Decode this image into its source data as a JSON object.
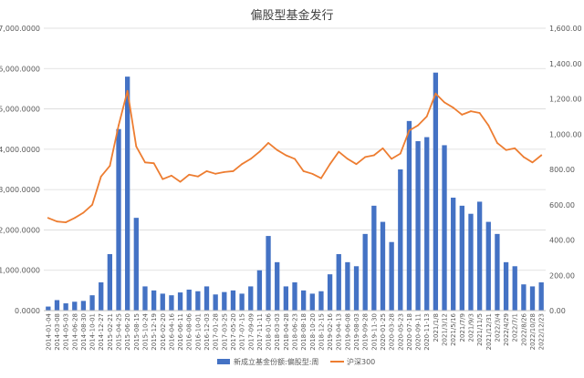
{
  "chart_data": {
    "type": "bar+line",
    "title": "偏股型基金发行",
    "legend": [
      {
        "label": "新成立基金份额:偏股型:周",
        "color": "#4472C4",
        "kind": "bar"
      },
      {
        "label": "沪深300",
        "color": "#ED7D31",
        "kind": "line"
      }
    ],
    "legend_position": "bottom-center",
    "grid": true,
    "y_left": {
      "ticks": [
        "0.0000",
        "1,000.0000",
        "2,000.0000",
        "3,000.0000",
        "4,000.0000",
        "5,000.0000",
        "6,000.0000",
        "7,000.0000"
      ],
      "range": [
        0,
        7000
      ]
    },
    "y_right": {
      "ticks": [
        "0.00",
        "200.00",
        "400.00",
        "600.00",
        "800.00",
        "1,000.00",
        "1,200.00",
        "1,400.00",
        "1,600.00"
      ],
      "range": [
        0,
        1600
      ]
    },
    "x_tick_labels": [
      "2014-01-04",
      "2014-03-08",
      "2014-05-03",
      "2014-06-28",
      "2014-08-30",
      "2014-10-01",
      "2014-12-27",
      "2015-02-21",
      "2015-04-25",
      "2015-06-20",
      "2015-08-15",
      "2015-10-24",
      "2015-12-19",
      "2016-02-20",
      "2016-04-16",
      "2016-06-11",
      "2016-08-06",
      "2016-10-01",
      "2016-12-03",
      "2017-01-28",
      "2017-03-25",
      "2017-05-20",
      "2017-07-15",
      "2017-09-09",
      "2017-11-11",
      "2018-01-06",
      "2018-03-03",
      "2018-04-28",
      "2018-06-23",
      "2018-08-18",
      "2018-10-20",
      "2018-12-15",
      "2019-02-16",
      "2019-04-13",
      "2019-06-08",
      "2019-08-03",
      "2019-09-28",
      "2019-11-30",
      "2020-01-25",
      "2020-03-28",
      "2020-05-23",
      "2020-07-18",
      "2020-09-11",
      "2020-11-13",
      "2021/1/8",
      "2021/3/12",
      "2021/5/16",
      "2021/7/9",
      "2021/9/3",
      "2021/11/5",
      "2021/12/31",
      "2022/3/4",
      "2022/4/29",
      "2022/7/1",
      "2022/8/26",
      "2022/10/28",
      "2022/12/23"
    ],
    "hs300": [
      {
        "x": 0,
        "y": 525
      },
      {
        "x": 1,
        "y": 505
      },
      {
        "x": 2,
        "y": 500
      },
      {
        "x": 3,
        "y": 525
      },
      {
        "x": 4,
        "y": 555
      },
      {
        "x": 5,
        "y": 600
      },
      {
        "x": 6,
        "y": 760
      },
      {
        "x": 7,
        "y": 820
      },
      {
        "x": 8,
        "y": 1050
      },
      {
        "x": 9,
        "y": 1245
      },
      {
        "x": 10,
        "y": 930
      },
      {
        "x": 11,
        "y": 840
      },
      {
        "x": 12,
        "y": 835
      },
      {
        "x": 13,
        "y": 745
      },
      {
        "x": 14,
        "y": 765
      },
      {
        "x": 15,
        "y": 730
      },
      {
        "x": 16,
        "y": 770
      },
      {
        "x": 17,
        "y": 760
      },
      {
        "x": 18,
        "y": 790
      },
      {
        "x": 19,
        "y": 775
      },
      {
        "x": 20,
        "y": 785
      },
      {
        "x": 21,
        "y": 790
      },
      {
        "x": 22,
        "y": 830
      },
      {
        "x": 23,
        "y": 860
      },
      {
        "x": 24,
        "y": 900
      },
      {
        "x": 25,
        "y": 950
      },
      {
        "x": 26,
        "y": 910
      },
      {
        "x": 27,
        "y": 880
      },
      {
        "x": 28,
        "y": 860
      },
      {
        "x": 29,
        "y": 790
      },
      {
        "x": 30,
        "y": 775
      },
      {
        "x": 31,
        "y": 750
      },
      {
        "x": 32,
        "y": 830
      },
      {
        "x": 33,
        "y": 900
      },
      {
        "x": 34,
        "y": 860
      },
      {
        "x": 35,
        "y": 830
      },
      {
        "x": 36,
        "y": 870
      },
      {
        "x": 37,
        "y": 880
      },
      {
        "x": 38,
        "y": 920
      },
      {
        "x": 39,
        "y": 860
      },
      {
        "x": 40,
        "y": 890
      },
      {
        "x": 41,
        "y": 1020
      },
      {
        "x": 42,
        "y": 1050
      },
      {
        "x": 43,
        "y": 1100
      },
      {
        "x": 44,
        "y": 1230
      },
      {
        "x": 45,
        "y": 1180
      },
      {
        "x": 46,
        "y": 1150
      },
      {
        "x": 47,
        "y": 1110
      },
      {
        "x": 48,
        "y": 1130
      },
      {
        "x": 49,
        "y": 1120
      },
      {
        "x": 50,
        "y": 1050
      },
      {
        "x": 51,
        "y": 950
      },
      {
        "x": 52,
        "y": 910
      },
      {
        "x": 53,
        "y": 920
      },
      {
        "x": 54,
        "y": 870
      },
      {
        "x": 55,
        "y": 840
      },
      {
        "x": 56,
        "y": 880
      }
    ],
    "weekly_issuance": [
      {
        "x": 0,
        "y": 100
      },
      {
        "x": 1,
        "y": 260
      },
      {
        "x": 2,
        "y": 180
      },
      {
        "x": 3,
        "y": 220
      },
      {
        "x": 4,
        "y": 240
      },
      {
        "x": 5,
        "y": 380
      },
      {
        "x": 6,
        "y": 700
      },
      {
        "x": 7,
        "y": 1400
      },
      {
        "x": 8,
        "y": 4500
      },
      {
        "x": 9,
        "y": 5800
      },
      {
        "x": 10,
        "y": 2300
      },
      {
        "x": 11,
        "y": 600
      },
      {
        "x": 12,
        "y": 500
      },
      {
        "x": 13,
        "y": 420
      },
      {
        "x": 14,
        "y": 380
      },
      {
        "x": 15,
        "y": 450
      },
      {
        "x": 16,
        "y": 520
      },
      {
        "x": 17,
        "y": 480
      },
      {
        "x": 18,
        "y": 600
      },
      {
        "x": 19,
        "y": 400
      },
      {
        "x": 20,
        "y": 460
      },
      {
        "x": 21,
        "y": 500
      },
      {
        "x": 22,
        "y": 420
      },
      {
        "x": 23,
        "y": 600
      },
      {
        "x": 24,
        "y": 1000
      },
      {
        "x": 25,
        "y": 1850
      },
      {
        "x": 26,
        "y": 1200
      },
      {
        "x": 27,
        "y": 600
      },
      {
        "x": 28,
        "y": 700
      },
      {
        "x": 29,
        "y": 500
      },
      {
        "x": 30,
        "y": 420
      },
      {
        "x": 31,
        "y": 480
      },
      {
        "x": 32,
        "y": 900
      },
      {
        "x": 33,
        "y": 1400
      },
      {
        "x": 34,
        "y": 1200
      },
      {
        "x": 35,
        "y": 1100
      },
      {
        "x": 36,
        "y": 1900
      },
      {
        "x": 37,
        "y": 2600
      },
      {
        "x": 38,
        "y": 2200
      },
      {
        "x": 39,
        "y": 1700
      },
      {
        "x": 40,
        "y": 3500
      },
      {
        "x": 41,
        "y": 4700
      },
      {
        "x": 42,
        "y": 4200
      },
      {
        "x": 43,
        "y": 4300
      },
      {
        "x": 44,
        "y": 5900
      },
      {
        "x": 45,
        "y": 4100
      },
      {
        "x": 46,
        "y": 2800
      },
      {
        "x": 47,
        "y": 2600
      },
      {
        "x": 48,
        "y": 2400
      },
      {
        "x": 49,
        "y": 2700
      },
      {
        "x": 50,
        "y": 2200
      },
      {
        "x": 51,
        "y": 1900
      },
      {
        "x": 52,
        "y": 1200
      },
      {
        "x": 53,
        "y": 1100
      },
      {
        "x": 54,
        "y": 650
      },
      {
        "x": 55,
        "y": 600
      },
      {
        "x": 56,
        "y": 700
      }
    ]
  }
}
